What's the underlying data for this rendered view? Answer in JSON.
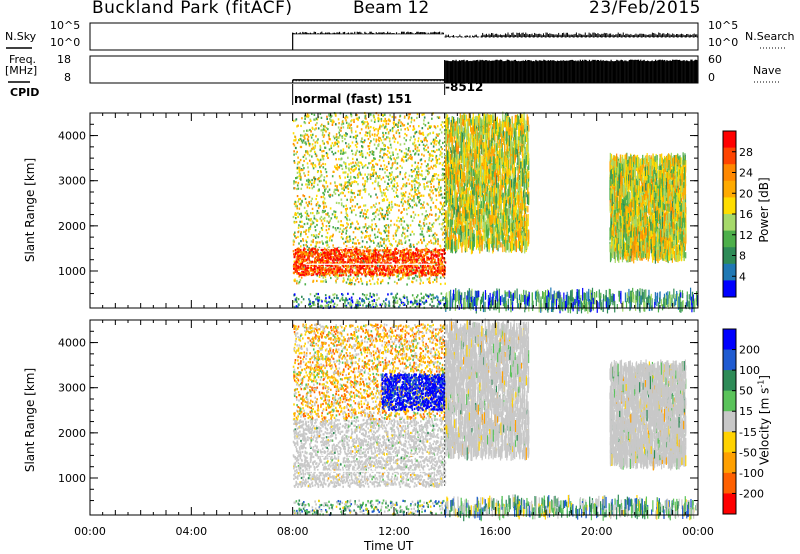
{
  "header": {
    "station": "Buckland Park (fitACF)",
    "beam": "Beam 12",
    "date": "23/Feb/2015"
  },
  "noise_panel": {
    "left_label": "N.Sky",
    "right_label": "N.Search",
    "left_ticks": [
      "10^5",
      "10^0"
    ],
    "right_ticks": [
      "10^5",
      "10^0"
    ]
  },
  "freq_panel": {
    "left_label_line1": "Freq.",
    "left_label_line2": "[MHz]",
    "right_label": "Nave",
    "left_ticks": [
      "18",
      "8"
    ],
    "right_ticks": [
      "60",
      "0"
    ]
  },
  "cpid": {
    "label": "CPID",
    "segments": [
      {
        "start_h": 8.0,
        "end_h": 14.0,
        "text": "normal (fast) 151"
      },
      {
        "start_h": 14.0,
        "end_h": 24.0,
        "text": "-8512"
      }
    ]
  },
  "power_colorbar": {
    "label": "Power [dB]",
    "ticks": [
      "28",
      "24",
      "20",
      "16",
      "12",
      "8",
      "4"
    ],
    "colors": [
      "#ff0000",
      "#ff4400",
      "#ff8800",
      "#ffaa00",
      "#ffdd00",
      "#a6d96a",
      "#4daf4a",
      "#2e8b57",
      "#1f78b4",
      "#0000ff"
    ]
  },
  "velocity_colorbar": {
    "label": "Velocity [m s",
    "label_sup": "-1",
    "label_end": "]",
    "ticks": [
      "200",
      "100",
      "50",
      "15",
      "-15",
      "-50",
      "-100",
      "-200"
    ],
    "colors": [
      "#0000ff",
      "#1f5bd1",
      "#2e8b57",
      "#5ac35a",
      "#c8c8c8",
      "#ffd200",
      "#ffa000",
      "#ff6000",
      "#ff0000"
    ]
  },
  "chart_data": {
    "type": "heatmap",
    "title": "Buckland Park (fitACF) Beam 12 23/Feb/2015",
    "xlabel": "Time UT",
    "x_ticks": [
      "00:00",
      "04:00",
      "08:00",
      "12:00",
      "16:00",
      "20:00",
      "00:00"
    ],
    "xlim_hours": [
      0,
      24
    ],
    "ylabel": "Slant Range [km]",
    "y_ticks": [
      1000,
      2000,
      3000,
      4000
    ],
    "ylim_km": [
      180,
      4500
    ],
    "panels": [
      {
        "name": "Power [dB]",
        "scale": [
          0,
          32
        ],
        "regions": [
          {
            "t_start": 8.0,
            "t_end": 14.0,
            "r_start": 700,
            "r_end": 4500,
            "typical_dB": 16
          },
          {
            "t_start": 8.0,
            "t_end": 14.0,
            "r_start": 900,
            "r_end": 1500,
            "typical_dB": 28
          },
          {
            "t_start": 14.0,
            "t_end": 17.3,
            "r_start": 1500,
            "r_end": 4400,
            "typical_dB": 16
          },
          {
            "t_start": 20.5,
            "t_end": 23.5,
            "r_start": 1300,
            "r_end": 3500,
            "typical_dB": 16
          },
          {
            "t_start": 8.0,
            "t_end": 24.0,
            "r_start": 180,
            "r_end": 500,
            "typical_dB": 8
          }
        ]
      },
      {
        "name": "Velocity [m s-1]",
        "scale": [
          -200,
          200
        ],
        "regions": [
          {
            "t_start": 8.0,
            "t_end": 14.0,
            "r_start": 800,
            "r_end": 2300,
            "typical_ms": 0
          },
          {
            "t_start": 8.0,
            "t_end": 14.0,
            "r_start": 2300,
            "r_end": 4400,
            "typical_ms": -50
          },
          {
            "t_start": 11.5,
            "t_end": 14.0,
            "r_start": 2500,
            "r_end": 3300,
            "typical_ms": 200
          },
          {
            "t_start": 14.0,
            "t_end": 17.3,
            "r_start": 1500,
            "r_end": 4400,
            "typical_ms": 0
          },
          {
            "t_start": 20.5,
            "t_end": 23.5,
            "r_start": 1300,
            "r_end": 3500,
            "typical_ms": 0
          },
          {
            "t_start": 8.0,
            "t_end": 24.0,
            "r_start": 180,
            "r_end": 500,
            "typical_ms": 50
          }
        ]
      }
    ],
    "noise": {
      "sky_level_log": 3.2,
      "search_level_log": 2.4,
      "start_h": 8.0
    },
    "freq_mhz": {
      "start_h": 8.0,
      "value": 10
    },
    "nave": {
      "t1": 8.0,
      "v1": 5,
      "t2": 14.0,
      "v2": 50
    }
  }
}
